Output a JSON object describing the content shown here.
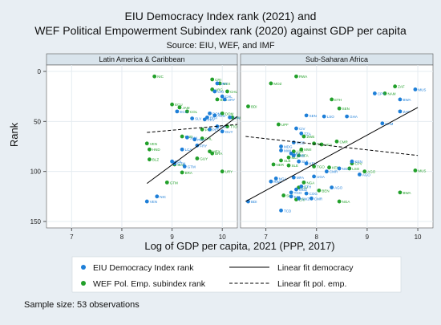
{
  "chart_data": {
    "type": "scatter",
    "title": "EIU Democracy Index rank (2021) and",
    "subtitle": "WEF Political Empowerment Subindex rank (2020) against GDP per capita",
    "source": "Source: EIU, WEF, and IMF",
    "xlabel": "Log of GDP per capita, 2021 (PPP, 2017)",
    "ylabel": "Rank",
    "xlim": [
      6.5,
      10.3
    ],
    "ylim": [
      0,
      150
    ],
    "y_reversed": true,
    "xticks": [
      7,
      8,
      9,
      10
    ],
    "yticks": [
      0,
      50,
      100,
      150
    ],
    "grid": true,
    "note": "Sample size: 53 observations",
    "colors": {
      "background": "#e8eef3",
      "panel": "#ffffff",
      "strip": "#d9e4ec",
      "grid": "#e5ecf1",
      "democracy": "#1e7fd8",
      "wef": "#22a02a",
      "fit": "#000000"
    },
    "legend": {
      "placement": "bottom",
      "items": [
        {
          "label": "EIU Democracy Index rank",
          "kind": "marker",
          "series": "democracy"
        },
        {
          "label": "Linear fit democracy",
          "kind": "line",
          "dash": "solid"
        },
        {
          "label": "WEF Pol. Emp. subindex rank",
          "kind": "marker",
          "series": "wef"
        },
        {
          "label": "Linear fit pol. emp.",
          "kind": "line",
          "dash": "dashed"
        }
      ]
    },
    "panels": [
      {
        "title": "Latin America & Caribbean",
        "fit_democracy": [
          [
            8.5,
            112
          ],
          [
            10.3,
            45
          ]
        ],
        "fit_wef": [
          [
            8.5,
            61
          ],
          [
            10.3,
            53
          ]
        ],
        "democracy": [
          {
            "x": 9.9,
            "y": 12,
            "label": "URY"
          },
          {
            "x": 9.85,
            "y": 20,
            "label": "CRI"
          },
          {
            "x": 10.0,
            "y": 25,
            "label": "CHL"
          },
          {
            "x": 10.05,
            "y": 28,
            "label": "URY"
          },
          {
            "x": 9.75,
            "y": 42,
            "label": "DOM"
          },
          {
            "x": 9.85,
            "y": 44,
            "label": "ARG"
          },
          {
            "x": 9.7,
            "y": 46,
            "label": "BRA"
          },
          {
            "x": 9.65,
            "y": 48,
            "label": "PRY"
          },
          {
            "x": 9.9,
            "y": 55,
            "label": "COL"
          },
          {
            "x": 9.75,
            "y": 58,
            "label": "PER"
          },
          {
            "x": 10.15,
            "y": 46,
            "label": "PAN"
          },
          {
            "x": 10.0,
            "y": 60,
            "label": "GUY"
          },
          {
            "x": 9.4,
            "y": 47,
            "label": "SLV"
          },
          {
            "x": 9.3,
            "y": 66,
            "label": "JAM"
          },
          {
            "x": 9.45,
            "y": 68,
            "label": "PER"
          },
          {
            "x": 9.5,
            "y": 74,
            "label": "FRY"
          },
          {
            "x": 9.2,
            "y": 78,
            "label": "LCA"
          },
          {
            "x": 9.0,
            "y": 90,
            "label": "BOL"
          },
          {
            "x": 9.05,
            "y": 92,
            "label": "GTM"
          },
          {
            "x": 9.25,
            "y": 95,
            "label": "GTM"
          },
          {
            "x": 8.7,
            "y": 125,
            "label": "NIC"
          },
          {
            "x": 8.5,
            "y": 130,
            "label": "VEN"
          },
          {
            "x": 9.1,
            "y": 40,
            "label": "ECU"
          }
        ],
        "wef": [
          {
            "x": 8.65,
            "y": 5,
            "label": "NIC"
          },
          {
            "x": 9.8,
            "y": 8,
            "label": "CRI"
          },
          {
            "x": 9.95,
            "y": 12,
            "label": "MEX"
          },
          {
            "x": 9.8,
            "y": 18,
            "label": "ARG"
          },
          {
            "x": 9.9,
            "y": 28,
            "label": "BOL"
          },
          {
            "x": 10.1,
            "y": 20,
            "label": "CHL"
          },
          {
            "x": 9.0,
            "y": 33,
            "label": "ECU"
          },
          {
            "x": 9.15,
            "y": 36,
            "label": "JAM"
          },
          {
            "x": 9.3,
            "y": 40,
            "label": "COL"
          },
          {
            "x": 10.0,
            "y": 42,
            "label": "DOM"
          },
          {
            "x": 10.2,
            "y": 46,
            "label": "PAN"
          },
          {
            "x": 10.1,
            "y": 55,
            "label": "TTO"
          },
          {
            "x": 9.6,
            "y": 58,
            "label": "PRY"
          },
          {
            "x": 9.2,
            "y": 65,
            "label": "HND"
          },
          {
            "x": 9.6,
            "y": 67,
            "label": "CHL"
          },
          {
            "x": 8.5,
            "y": 72,
            "label": "VEN"
          },
          {
            "x": 8.55,
            "y": 78,
            "label": "HND"
          },
          {
            "x": 9.75,
            "y": 80,
            "label": "MEX"
          },
          {
            "x": 9.8,
            "y": 82,
            "label": "BRA"
          },
          {
            "x": 9.5,
            "y": 87,
            "label": "GUY"
          },
          {
            "x": 9.2,
            "y": 101,
            "label": "BRA"
          },
          {
            "x": 10.0,
            "y": 100,
            "label": "URY"
          },
          {
            "x": 8.9,
            "y": 111,
            "label": "GTM"
          },
          {
            "x": 9.05,
            "y": 93,
            "label": "SLV"
          },
          {
            "x": 8.55,
            "y": 88,
            "label": "BLZ"
          }
        ]
      },
      {
        "title": "Sub-Saharan Africa",
        "fit_democracy": [
          [
            6.6,
            130
          ],
          [
            10.0,
            36
          ]
        ],
        "fit_wef": [
          [
            6.6,
            65
          ],
          [
            10.0,
            84
          ]
        ],
        "democracy": [
          {
            "x": 9.95,
            "y": 18,
            "label": "MUS"
          },
          {
            "x": 9.15,
            "y": 22,
            "label": "CPV"
          },
          {
            "x": 9.65,
            "y": 28,
            "label": "BWA"
          },
          {
            "x": 9.65,
            "y": 40,
            "label": "ZAF"
          },
          {
            "x": 9.3,
            "y": 52,
            "label": "NAM"
          },
          {
            "x": 8.6,
            "y": 45,
            "label": "GHA"
          },
          {
            "x": 7.8,
            "y": 44,
            "label": "SEN"
          },
          {
            "x": 8.15,
            "y": 45,
            "label": "LSO"
          },
          {
            "x": 7.6,
            "y": 57,
            "label": "CIV"
          },
          {
            "x": 7.7,
            "y": 62,
            "label": "TZA"
          },
          {
            "x": 7.55,
            "y": 71,
            "label": "MOZ"
          },
          {
            "x": 7.3,
            "y": 75,
            "label": "MDG"
          },
          {
            "x": 7.3,
            "y": 79,
            "label": "MWI"
          },
          {
            "x": 7.5,
            "y": 82,
            "label": "MLI"
          },
          {
            "x": 7.55,
            "y": 84,
            "label": "GMB"
          },
          {
            "x": 7.65,
            "y": 90,
            "label": "SLE"
          },
          {
            "x": 7.8,
            "y": 92,
            "label": "KEN"
          },
          {
            "x": 8.7,
            "y": 90,
            "label": "KEN"
          },
          {
            "x": 8.45,
            "y": 97,
            "label": "NGA"
          },
          {
            "x": 8.2,
            "y": 100,
            "label": "CMR"
          },
          {
            "x": 7.95,
            "y": 105,
            "label": "UGA"
          },
          {
            "x": 7.55,
            "y": 106,
            "label": "MFA"
          },
          {
            "x": 7.2,
            "y": 107,
            "label": "NGA"
          },
          {
            "x": 7.1,
            "y": 110,
            "label": "RWA"
          },
          {
            "x": 7.7,
            "y": 115,
            "label": "ETH"
          },
          {
            "x": 7.6,
            "y": 118,
            "label": "MOZ"
          },
          {
            "x": 7.5,
            "y": 121,
            "label": "TGO"
          },
          {
            "x": 7.8,
            "y": 122,
            "label": "COG"
          },
          {
            "x": 7.5,
            "y": 125,
            "label": "ERI"
          },
          {
            "x": 7.9,
            "y": 127,
            "label": "CMR"
          },
          {
            "x": 6.65,
            "y": 130,
            "label": "BDI"
          },
          {
            "x": 7.3,
            "y": 139,
            "label": "TCD"
          },
          {
            "x": 7.65,
            "y": 127,
            "label": "SWZ"
          },
          {
            "x": 8.3,
            "y": 116,
            "label": "AGO"
          },
          {
            "x": 8.85,
            "y": 103,
            "label": "AGO"
          }
        ],
        "wef": [
          {
            "x": 7.6,
            "y": 5,
            "label": "RWA"
          },
          {
            "x": 7.1,
            "y": 12,
            "label": "MOZ"
          },
          {
            "x": 9.55,
            "y": 15,
            "label": "ZAF"
          },
          {
            "x": 9.35,
            "y": 22,
            "label": "NAM"
          },
          {
            "x": 8.3,
            "y": 28,
            "label": "ETH"
          },
          {
            "x": 6.65,
            "y": 35,
            "label": "BDI"
          },
          {
            "x": 8.45,
            "y": 37,
            "label": "SEN"
          },
          {
            "x": 7.25,
            "y": 53,
            "label": "UPF"
          },
          {
            "x": 7.75,
            "y": 65,
            "label": "ZWE"
          },
          {
            "x": 8.4,
            "y": 70,
            "label": "CMR"
          },
          {
            "x": 8.1,
            "y": 73,
            "label": "UGA"
          },
          {
            "x": 7.95,
            "y": 72,
            "label": "TZA"
          },
          {
            "x": 7.7,
            "y": 78,
            "label": "MWI"
          },
          {
            "x": 7.55,
            "y": 80,
            "label": "LBR"
          },
          {
            "x": 7.65,
            "y": 84,
            "label": "BFA"
          },
          {
            "x": 7.45,
            "y": 86,
            "label": "MLI"
          },
          {
            "x": 7.3,
            "y": 89,
            "label": "SLE"
          },
          {
            "x": 7.15,
            "y": 93,
            "label": "NER"
          },
          {
            "x": 7.45,
            "y": 94,
            "label": "SLE"
          },
          {
            "x": 7.95,
            "y": 95,
            "label": "TGO"
          },
          {
            "x": 8.25,
            "y": 96,
            "label": "KEN"
          },
          {
            "x": 8.7,
            "y": 92,
            "label": "CPV"
          },
          {
            "x": 8.65,
            "y": 97,
            "label": "LSO"
          },
          {
            "x": 8.95,
            "y": 100,
            "label": "AGO"
          },
          {
            "x": 9.95,
            "y": 99,
            "label": "MUS"
          },
          {
            "x": 7.75,
            "y": 111,
            "label": "NGA"
          },
          {
            "x": 7.65,
            "y": 116,
            "label": "CIV"
          },
          {
            "x": 8.05,
            "y": 119,
            "label": "BEN"
          },
          {
            "x": 7.35,
            "y": 124,
            "label": "SLE"
          },
          {
            "x": 7.6,
            "y": 128,
            "label": "ERI"
          },
          {
            "x": 8.45,
            "y": 130,
            "label": "NGA"
          },
          {
            "x": 9.65,
            "y": 121,
            "label": "BWA"
          }
        ]
      }
    ]
  }
}
